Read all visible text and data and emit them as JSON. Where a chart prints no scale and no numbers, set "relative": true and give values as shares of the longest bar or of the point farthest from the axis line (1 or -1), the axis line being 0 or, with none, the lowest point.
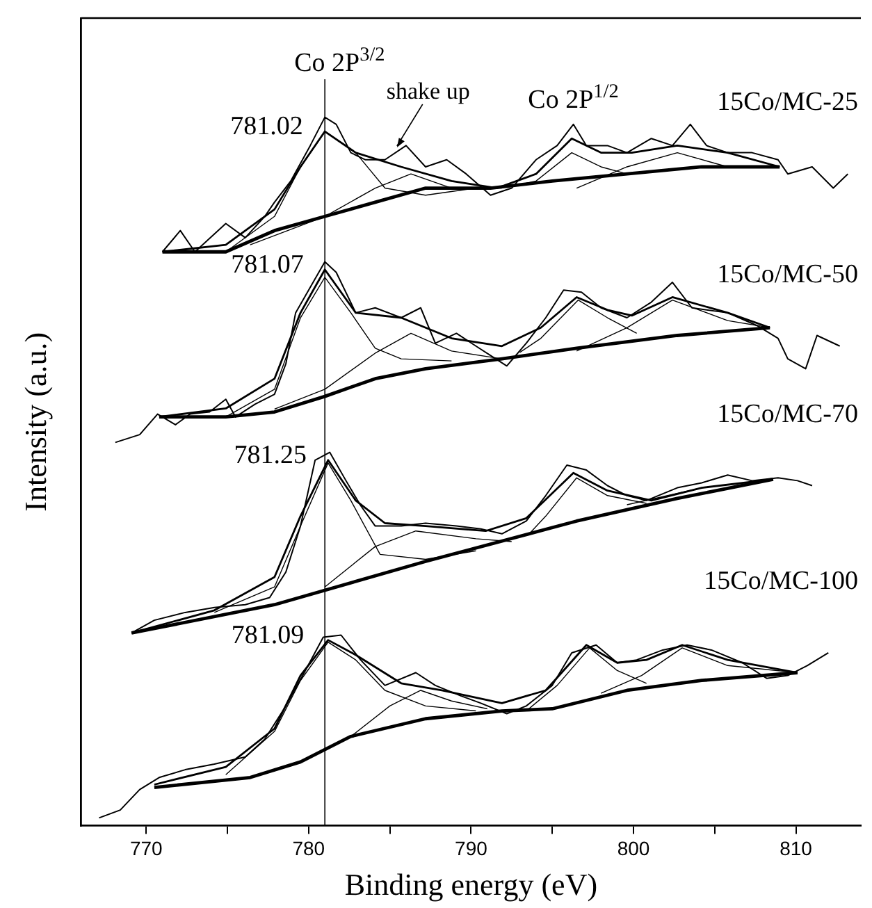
{
  "chart_data": {
    "type": "line",
    "relative": true,
    "xlabel": "Binding energy (eV)",
    "ylabel": "Intensity (a.u.)",
    "xlim": [
      766,
      814
    ],
    "xticks": [
      770,
      {
        "value": 775,
        "label": null
      },
      780,
      {
        "value": 785,
        "label": null
      },
      790,
      {
        "value": 795,
        "label": null
      },
      800,
      {
        "value": 805,
        "label": null
      },
      810
    ],
    "tick_labels": "x",
    "grid": false,
    "legend": false,
    "marker": "none",
    "ref_lines": [
      {
        "axis": "x",
        "value": 781,
        "label": "Co 2P$^{3/2}$"
      }
    ],
    "annotations": [
      {
        "text": "781.02",
        "x": 781.02,
        "y": 0.98
      },
      {
        "text": "781.07",
        "x": 781.07,
        "y": 0.785
      },
      {
        "text": "781.25",
        "x": 781.25,
        "y": 0.516
      },
      {
        "text": "781.09",
        "x": 781.09,
        "y": 0.262
      },
      "shake up",
      {
        "text": "Co 2P$^{1/2}$",
        "x": 796.3,
        "y": 0.97
      }
    ],
    "series": [
      {
        "name": "15Co/MC-25",
        "color": "#000000",
        "x": [
          771.0,
          772.1,
          773.0,
          774.9,
          776.1,
          777.3,
          777.9,
          778.9,
          780.1,
          781.0,
          781.7,
          782.6,
          783.5,
          784.7,
          786.0,
          787.2,
          788.5,
          789.7,
          791.2,
          792.5,
          794.0,
          795.3,
          796.3,
          797.1,
          798.4,
          799.6,
          801.1,
          802.4,
          803.5,
          804.5,
          805.8,
          807.3,
          808.9,
          809.5,
          811.0,
          812.3,
          813.2
        ],
        "values": [
          0.81,
          0.84,
          0.81,
          0.85,
          0.83,
          0.86,
          0.88,
          0.91,
          0.96,
          1.0,
          0.99,
          0.95,
          0.94,
          0.94,
          0.96,
          0.93,
          0.94,
          0.92,
          0.89,
          0.9,
          0.94,
          0.96,
          0.99,
          0.96,
          0.96,
          0.95,
          0.97,
          0.96,
          0.99,
          0.96,
          0.95,
          0.95,
          0.94,
          0.92,
          0.93,
          0.9,
          0.92
        ]
      },
      {
        "color": "#000000",
        "x": [
          771.0,
          774.9,
          777.9,
          779.5,
          781.0,
          782.9,
          785.7,
          788.8,
          791.6,
          794.0,
          796.2,
          798.0,
          799.9,
          802.7,
          805.8,
          809.0
        ],
        "values": [
          0.81,
          0.82,
          0.87,
          0.93,
          0.98,
          0.95,
          0.93,
          0.91,
          0.9,
          0.92,
          0.97,
          0.95,
          0.95,
          0.96,
          0.95,
          0.93
        ]
      },
      {
        "color": "#000000",
        "x": [
          771.0,
          774.9,
          777.9,
          781.0,
          784.1,
          787.2,
          791.2,
          795.0,
          799.6,
          804.2,
          809.0
        ],
        "values": [
          0.81,
          0.81,
          0.84,
          0.86,
          0.88,
          0.9,
          0.9,
          0.91,
          0.92,
          0.93,
          0.93
        ]
      },
      {
        "color": "#000000",
        "x": [
          774.9,
          777.9,
          779.5,
          781.0,
          782.9,
          784.7,
          787.2,
          790.3
        ],
        "values": [
          0.81,
          0.86,
          0.93,
          0.98,
          0.95,
          0.9,
          0.89,
          0.9
        ]
      },
      {
        "color": "#000000",
        "x": [
          776.4,
          781.0,
          784.1,
          786.3,
          788.8,
          791.9
        ],
        "values": [
          0.82,
          0.86,
          0.9,
          0.92,
          0.9,
          0.9
        ]
      },
      {
        "color": "#000000",
        "x": [
          793.0,
          794.0,
          796.2,
          798.0,
          799.6
        ],
        "values": [
          0.905,
          0.91,
          0.95,
          0.93,
          0.92
        ]
      },
      {
        "color": "#000000",
        "x": [
          796.5,
          799.6,
          802.7,
          805.8,
          809.0
        ],
        "values": [
          0.9,
          0.93,
          0.95,
          0.93,
          0.93
        ]
      },
      {
        "name": "15Co/MC-50",
        "color": "#000000",
        "x": [
          768.1,
          769.6,
          770.7,
          771.8,
          772.7,
          773.9,
          774.9,
          775.5,
          776.7,
          777.9,
          778.6,
          779.2,
          780.1,
          781.0,
          781.7,
          782.9,
          784.1,
          785.7,
          786.9,
          787.8,
          789.1,
          790.3,
          792.2,
          793.4,
          794.6,
          795.7,
          796.8,
          798.0,
          799.6,
          801.1,
          802.4,
          803.6,
          805.8,
          807.6,
          808.9,
          809.5,
          810.6,
          811.3,
          812.7
        ],
        "values": [
          0.541,
          0.552,
          0.581,
          0.566,
          0.581,
          0.584,
          0.602,
          0.577,
          0.595,
          0.609,
          0.652,
          0.724,
          0.76,
          0.796,
          0.781,
          0.724,
          0.731,
          0.717,
          0.731,
          0.681,
          0.695,
          0.677,
          0.649,
          0.681,
          0.717,
          0.756,
          0.753,
          0.731,
          0.717,
          0.739,
          0.767,
          0.731,
          0.724,
          0.706,
          0.688,
          0.659,
          0.645,
          0.692,
          0.677
        ]
      },
      {
        "color": "#000000",
        "x": [
          770.8,
          774.9,
          777.9,
          779.5,
          781.0,
          782.9,
          785.7,
          788.8,
          791.9,
          794.3,
          796.5,
          798.4,
          799.9,
          802.4,
          805.8,
          808.4
        ],
        "values": [
          0.577,
          0.589,
          0.631,
          0.724,
          0.785,
          0.724,
          0.717,
          0.688,
          0.677,
          0.703,
          0.746,
          0.728,
          0.72,
          0.746,
          0.724,
          0.703
        ]
      },
      {
        "color": "#000000",
        "x": [
          770.8,
          774.9,
          777.9,
          781.0,
          784.1,
          787.2,
          791.9,
          796.5,
          802.7,
          808.4
        ],
        "values": [
          0.577,
          0.577,
          0.584,
          0.606,
          0.631,
          0.645,
          0.659,
          0.674,
          0.692,
          0.703
        ]
      },
      {
        "color": "#000000",
        "x": [
          774.9,
          777.9,
          779.5,
          781.0,
          782.6,
          784.1,
          785.7,
          788.8
        ],
        "values": [
          0.577,
          0.616,
          0.717,
          0.774,
          0.724,
          0.674,
          0.659,
          0.656
        ]
      },
      {
        "color": "#000000",
        "x": [
          777.9,
          781.0,
          784.1,
          786.3,
          788.8,
          791.9
        ],
        "values": [
          0.588,
          0.616,
          0.667,
          0.695,
          0.67,
          0.659
        ]
      },
      {
        "color": "#000000",
        "x": [
          793.0,
          794.3,
          796.6,
          798.4,
          800.2
        ],
        "values": [
          0.668,
          0.688,
          0.742,
          0.717,
          0.695
        ]
      },
      {
        "color": "#000000",
        "x": [
          796.5,
          799.6,
          802.4,
          805.8,
          808.4
        ],
        "values": [
          0.67,
          0.703,
          0.742,
          0.713,
          0.703
        ]
      },
      {
        "name": "15Co/MC-70",
        "color": "#000000",
        "x": [
          769.1,
          770.5,
          772.4,
          774.2,
          776.1,
          777.6,
          778.6,
          779.5,
          780.4,
          781.3,
          782.3,
          783.2,
          784.1,
          785.7,
          787.2,
          789.1,
          790.6,
          791.9,
          793.4,
          794.6,
          795.9,
          797.1,
          798.4,
          799.6,
          800.8,
          802.7,
          804.2,
          805.8,
          807.3,
          808.9,
          810.1,
          811.0
        ],
        "values": [
          0.272,
          0.29,
          0.301,
          0.308,
          0.312,
          0.322,
          0.358,
          0.423,
          0.516,
          0.527,
          0.487,
          0.452,
          0.423,
          0.423,
          0.427,
          0.423,
          0.419,
          0.412,
          0.43,
          0.466,
          0.509,
          0.502,
          0.48,
          0.466,
          0.459,
          0.477,
          0.484,
          0.495,
          0.487,
          0.491,
          0.487,
          0.48
        ]
      },
      {
        "color": "#000000",
        "x": [
          769.1,
          774.2,
          777.9,
          779.5,
          781.2,
          782.9,
          784.7,
          787.2,
          790.9,
          793.4,
          796.3,
          798.4,
          801.1,
          804.2,
          808.6
        ],
        "values": [
          0.272,
          0.304,
          0.351,
          0.437,
          0.516,
          0.459,
          0.427,
          0.423,
          0.416,
          0.434,
          0.498,
          0.473,
          0.459,
          0.477,
          0.489
        ]
      },
      {
        "color": "#000000",
        "x": [
          769.1,
          777.9,
          787.2,
          796.5,
          802.7,
          808.6
        ],
        "values": [
          0.272,
          0.312,
          0.373,
          0.43,
          0.462,
          0.489
        ]
      },
      {
        "color": "#000000",
        "x": [
          774.2,
          777.9,
          779.5,
          781.2,
          782.6,
          784.4,
          787.2,
          790.3
        ],
        "values": [
          0.301,
          0.337,
          0.423,
          0.512,
          0.459,
          0.383,
          0.376,
          0.388
        ]
      },
      {
        "color": "#000000",
        "x": [
          781.0,
          784.1,
          786.6,
          790.3,
          792.5
        ],
        "values": [
          0.337,
          0.394,
          0.416,
          0.405,
          0.401
        ]
      },
      {
        "color": "#000000",
        "x": [
          793.5,
          794.6,
          796.5,
          798.4,
          800.8
        ],
        "values": [
          0.41,
          0.437,
          0.491,
          0.466,
          0.455
        ]
      },
      {
        "color": "#000000",
        "x": [
          799.6,
          804.2,
          808.6
        ],
        "values": [
          0.453,
          0.477,
          0.489
        ]
      },
      {
        "name": "15Co/MC-100",
        "color": "#000000",
        "x": [
          767.1,
          768.4,
          769.6,
          770.8,
          772.4,
          774.2,
          776.1,
          777.3,
          778.6,
          779.8,
          780.9,
          782.0,
          783.2,
          784.7,
          786.6,
          787.8,
          789.4,
          790.6,
          792.2,
          793.4,
          795.0,
          796.2,
          797.7,
          799.0,
          800.2,
          801.8,
          803.3,
          804.8,
          806.7,
          808.2,
          809.5,
          810.7,
          812.0
        ],
        "values": [
          0.011,
          0.022,
          0.051,
          0.068,
          0.079,
          0.087,
          0.097,
          0.122,
          0.169,
          0.219,
          0.266,
          0.269,
          0.234,
          0.198,
          0.216,
          0.198,
          0.183,
          0.173,
          0.158,
          0.169,
          0.198,
          0.244,
          0.255,
          0.23,
          0.234,
          0.248,
          0.255,
          0.248,
          0.23,
          0.208,
          0.212,
          0.226,
          0.244
        ]
      },
      {
        "color": "#000000",
        "x": [
          770.5,
          774.9,
          777.9,
          779.5,
          781.2,
          782.9,
          785.7,
          788.2,
          791.9,
          794.6,
          797.1,
          799.0,
          800.8,
          803.0,
          805.8,
          810.1
        ],
        "values": [
          0.058,
          0.083,
          0.137,
          0.212,
          0.262,
          0.241,
          0.201,
          0.191,
          0.173,
          0.191,
          0.255,
          0.23,
          0.234,
          0.255,
          0.234,
          0.216
        ]
      },
      {
        "color": "#000000",
        "x": [
          770.5,
          776.4,
          779.5,
          782.6,
          787.2,
          791.9,
          795.0,
          799.6,
          804.2,
          810.1
        ],
        "values": [
          0.054,
          0.068,
          0.09,
          0.126,
          0.151,
          0.162,
          0.165,
          0.191,
          0.205,
          0.216
        ]
      },
      {
        "color": "#000000",
        "x": [
          774.9,
          777.9,
          779.5,
          781.2,
          782.9,
          784.7,
          787.2,
          790.3
        ],
        "values": [
          0.072,
          0.133,
          0.205,
          0.259,
          0.234,
          0.191,
          0.169,
          0.162
        ]
      },
      {
        "color": "#000000",
        "x": [
          782.6,
          785.0,
          786.9,
          788.8,
          791.0
        ],
        "values": [
          0.126,
          0.169,
          0.191,
          0.176,
          0.165
        ]
      },
      {
        "color": "#000000",
        "x": [
          793.4,
          795.3,
          797.3,
          799.0,
          800.8
        ],
        "values": [
          0.162,
          0.198,
          0.251,
          0.219,
          0.201
        ]
      },
      {
        "color": "#000000",
        "x": [
          798.0,
          800.5,
          803.0,
          805.8,
          810.1
        ],
        "values": [
          0.187,
          0.212,
          0.251,
          0.226,
          0.216
        ]
      }
    ]
  }
}
